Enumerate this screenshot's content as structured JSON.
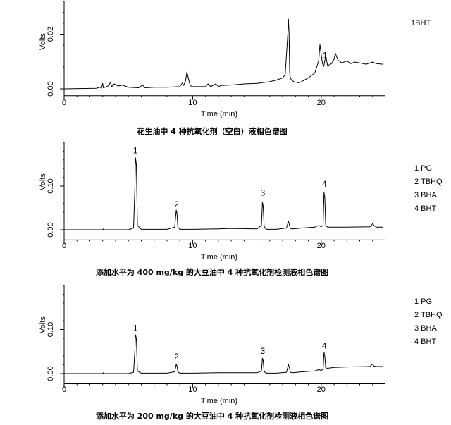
{
  "chart_data": [
    {
      "type": "line",
      "caption": "花生油中 4 种抗氧化剂（空白）液相色谱图",
      "xlabel": "Time (min)",
      "ylabel": "Volts",
      "xlim": [
        0,
        25
      ],
      "ylim": [
        -0.002,
        0.032
      ],
      "xticks": [
        0,
        10,
        20
      ],
      "xtick_labels": [
        "0",
        "10",
        "20"
      ],
      "yticks": [
        0,
        0.02
      ],
      "ytick_labels": [
        "0.00",
        "0.02"
      ],
      "legend": [
        "1BHT"
      ],
      "peak_labels": [
        {
          "text": "1",
          "x": 20.3,
          "y": 0.0112
        }
      ],
      "series": [
        {
          "x": [
            0,
            2.5,
            2.8,
            2.9,
            3.0,
            3.05,
            3.2,
            3.5,
            3.6,
            3.7,
            3.9,
            4.2,
            4.5,
            5.0,
            5.8,
            6.1,
            6.3,
            7.0,
            8.0,
            9.0,
            9.2,
            9.3,
            9.45,
            9.55,
            9.65,
            9.8,
            10.0,
            11.0,
            11.2,
            11.4,
            11.8,
            12.0,
            12.2,
            13.0,
            14.0,
            15.0,
            16.0,
            16.5,
            17.0,
            17.2,
            17.4,
            17.45,
            17.5,
            17.55,
            17.6,
            17.7,
            17.9,
            18.3,
            18.6,
            19.0,
            19.5,
            19.8,
            19.9,
            20.0,
            20.1,
            20.2,
            20.35,
            20.5,
            20.8,
            21.0,
            21.1,
            21.3,
            21.6,
            22.0,
            22.3,
            22.6,
            23.0,
            23.5,
            24.0,
            24.3,
            24.8
          ],
          "y": [
            0,
            0.0002,
            0.0006,
            0.0002,
            0.002,
            0.0004,
            0.0006,
            0.0012,
            0.0025,
            0.0008,
            0.0018,
            0.001,
            0.0014,
            0.0006,
            0.0004,
            0.0014,
            0.0004,
            0.0006,
            0.0006,
            0.0008,
            0.0022,
            0.0012,
            0.003,
            0.0062,
            0.0042,
            0.0012,
            0.0008,
            0.0008,
            0.0018,
            0.0008,
            0.0018,
            0.0008,
            0.0012,
            0.0014,
            0.0018,
            0.002,
            0.0026,
            0.0032,
            0.004,
            0.0052,
            0.02,
            0.0255,
            0.02,
            0.0058,
            0.004,
            0.0032,
            0.0025,
            0.0022,
            0.003,
            0.004,
            0.0058,
            0.0102,
            0.0162,
            0.0125,
            0.0092,
            0.0082,
            0.012,
            0.0085,
            0.0092,
            0.0108,
            0.013,
            0.0105,
            0.0095,
            0.0102,
            0.0092,
            0.0098,
            0.0095,
            0.009,
            0.0098,
            0.0092,
            0.009
          ]
        }
      ]
    },
    {
      "type": "line",
      "caption": "添加水平为 400 mg/kg 的大豆油中 4 种抗氧化剂检测液相色谱图",
      "xlabel": "Time (min)",
      "ylabel": "Volts",
      "xlim": [
        0,
        25
      ],
      "ylim": [
        -0.02,
        0.2
      ],
      "xticks": [
        0,
        10,
        20
      ],
      "xtick_labels": [
        "0",
        "10",
        "20"
      ],
      "yticks": [
        0,
        0.1
      ],
      "ytick_labels": [
        "0.00",
        "0.10"
      ],
      "legend": [
        "1 PG",
        "2 TBHQ",
        "3 BHA",
        "4 BHT"
      ],
      "peak_labels": [
        {
          "text": "1",
          "x": 5.55,
          "y": 0.175
        },
        {
          "text": "2",
          "x": 8.75,
          "y": 0.052
        },
        {
          "text": "3",
          "x": 15.45,
          "y": 0.078
        },
        {
          "text": "4",
          "x": 20.25,
          "y": 0.098
        }
      ],
      "series": [
        {
          "x": [
            0,
            3.0,
            3.05,
            3.1,
            5.0,
            5.4,
            5.5,
            5.55,
            5.62,
            5.7,
            6.0,
            8.0,
            8.6,
            8.72,
            8.78,
            8.85,
            9.0,
            10.0,
            12.0,
            13.0,
            15.0,
            15.35,
            15.43,
            15.48,
            15.56,
            15.7,
            16.5,
            17.3,
            17.45,
            17.52,
            17.6,
            17.8,
            18.5,
            19.5,
            19.8,
            20.0,
            20.15,
            20.22,
            20.28,
            20.35,
            20.5,
            22.0,
            23.8,
            24.0,
            24.1,
            24.3,
            24.8
          ],
          "y": [
            0,
            0,
            0.002,
            0,
            0,
            0.004,
            0.09,
            0.165,
            0.15,
            0.01,
            0.001,
            0.001,
            0.006,
            0.045,
            0.038,
            0.006,
            0.001,
            0.001,
            0.002,
            0.003,
            0.002,
            0.01,
            0.063,
            0.055,
            0.008,
            0.001,
            0.001,
            0.004,
            0.02,
            0.012,
            0.003,
            0.002,
            0.004,
            0.006,
            0.01,
            0.007,
            0.01,
            0.085,
            0.075,
            0.01,
            0.006,
            0.006,
            0.007,
            0.014,
            0.01,
            0.006,
            0.006
          ]
        }
      ]
    },
    {
      "type": "line",
      "caption": "添加水平为 200 mg/kg 的大豆油中 4 种抗氧化剂检测液相色谱图",
      "xlabel": "Time (min)",
      "ylabel": "Volts",
      "xlim": [
        0,
        25
      ],
      "ylim": [
        -0.02,
        0.2
      ],
      "xticks": [
        0,
        10,
        20
      ],
      "xtick_labels": [
        "0",
        "10",
        "20"
      ],
      "yticks": [
        0,
        0.1
      ],
      "ytick_labels": [
        "0.00",
        "0.10"
      ],
      "legend": [
        "1 PG",
        "2 TBHQ",
        "3 BHA",
        "4 BHT"
      ],
      "peak_labels": [
        {
          "text": "1",
          "x": 5.55,
          "y": 0.097
        },
        {
          "text": "2",
          "x": 8.75,
          "y": 0.032
        },
        {
          "text": "3",
          "x": 15.45,
          "y": 0.045
        },
        {
          "text": "4",
          "x": 20.25,
          "y": 0.057
        }
      ],
      "series": [
        {
          "x": [
            0,
            3.0,
            3.05,
            3.1,
            5.0,
            5.4,
            5.5,
            5.55,
            5.62,
            5.7,
            6.0,
            8.0,
            8.6,
            8.72,
            8.78,
            8.85,
            9.0,
            10.0,
            12.0,
            13.0,
            15.0,
            15.35,
            15.43,
            15.48,
            15.56,
            15.7,
            16.5,
            17.3,
            17.45,
            17.52,
            17.6,
            17.8,
            18.5,
            19.5,
            19.8,
            20.0,
            20.15,
            20.22,
            20.28,
            20.35,
            20.5,
            21.0,
            22.0,
            23.8,
            24.0,
            24.1,
            24.3,
            24.8
          ],
          "y": [
            0,
            0,
            0.002,
            0,
            0,
            0.003,
            0.05,
            0.088,
            0.08,
            0.006,
            0.001,
            0.001,
            0.004,
            0.021,
            0.018,
            0.004,
            0.001,
            0.001,
            0.002,
            0.002,
            0.002,
            0.006,
            0.035,
            0.03,
            0.005,
            0.001,
            0.001,
            0.003,
            0.021,
            0.014,
            0.003,
            0.002,
            0.004,
            0.006,
            0.009,
            0.007,
            0.01,
            0.048,
            0.04,
            0.013,
            0.012,
            0.014,
            0.015,
            0.016,
            0.022,
            0.017,
            0.016,
            0.016
          ]
        }
      ]
    }
  ]
}
